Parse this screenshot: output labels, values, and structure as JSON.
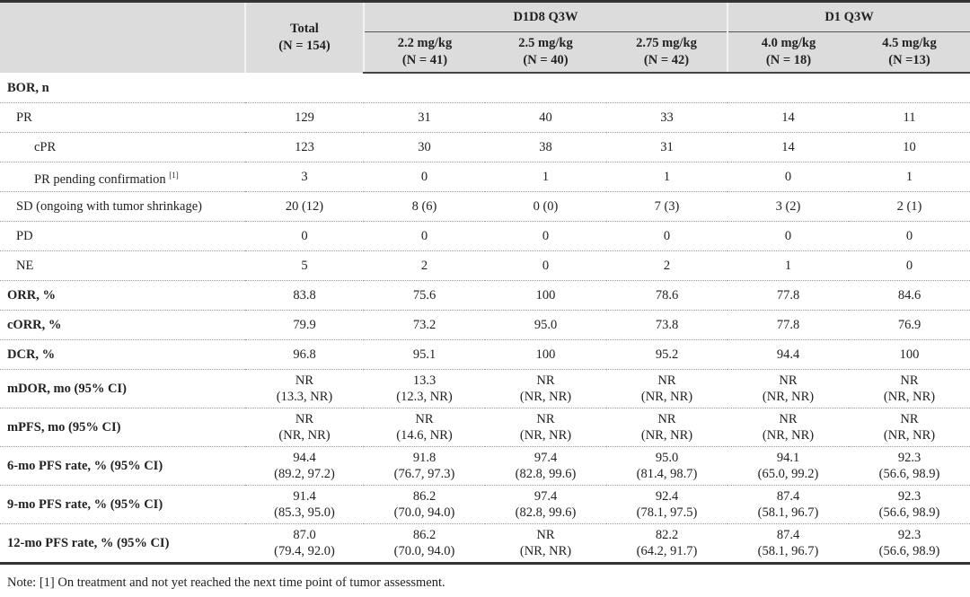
{
  "header": {
    "total_label": "Total",
    "total_n": "(N = 154)",
    "groups": [
      {
        "label": "D1D8 Q3W",
        "cols": [
          {
            "dose": "2.2 mg/kg",
            "n": "(N = 41)"
          },
          {
            "dose": "2.5 mg/kg",
            "n": "(N = 40)"
          },
          {
            "dose": "2.75 mg/kg",
            "n": "(N = 42)"
          }
        ]
      },
      {
        "label": "D1 Q3W",
        "cols": [
          {
            "dose": "4.0 mg/kg",
            "n": "(N = 18)"
          },
          {
            "dose": "4.5 mg/kg",
            "n": "(N =13)"
          }
        ]
      }
    ]
  },
  "rows": [
    {
      "label": "BOR, n",
      "style": "bold",
      "values": []
    },
    {
      "label": "PR",
      "style": "ind1",
      "values": [
        "129",
        "31",
        "40",
        "33",
        "14",
        "11"
      ]
    },
    {
      "label": "cPR",
      "style": "ind2",
      "values": [
        "123",
        "30",
        "38",
        "31",
        "14",
        "10"
      ]
    },
    {
      "label": "PR pending confirmation",
      "sup": "[1]",
      "style": "ind2",
      "values": [
        "3",
        "0",
        "1",
        "1",
        "0",
        "1"
      ]
    },
    {
      "label": "SD (ongoing with tumor shrinkage)",
      "style": "ind1",
      "values": [
        "20 (12)",
        "8 (6)",
        "0 (0)",
        "7 (3)",
        "3 (2)",
        "2 (1)"
      ]
    },
    {
      "label": "PD",
      "style": "ind1",
      "values": [
        "0",
        "0",
        "0",
        "0",
        "0",
        "0"
      ]
    },
    {
      "label": "NE",
      "style": "ind1",
      "values": [
        "5",
        "2",
        "0",
        "2",
        "1",
        "0"
      ]
    },
    {
      "label": "ORR, %",
      "style": "bold",
      "values": [
        "83.8",
        "75.6",
        "100",
        "78.6",
        "77.8",
        "84.6"
      ]
    },
    {
      "label": "cORR, %",
      "style": "bold",
      "values": [
        "79.9",
        "73.2",
        "95.0",
        "73.8",
        "77.8",
        "76.9"
      ]
    },
    {
      "label": "DCR, %",
      "style": "bold",
      "values": [
        "96.8",
        "95.1",
        "100",
        "95.2",
        "94.4",
        "100"
      ]
    },
    {
      "label": "mDOR, mo (95% CI)",
      "style": "bold",
      "values": [
        [
          "NR",
          "(13.3, NR)"
        ],
        [
          "13.3",
          "(12.3, NR)"
        ],
        [
          "NR",
          "(NR, NR)"
        ],
        [
          "NR",
          "(NR, NR)"
        ],
        [
          "NR",
          "(NR, NR)"
        ],
        [
          "NR",
          "(NR, NR)"
        ]
      ]
    },
    {
      "label": "mPFS, mo (95% CI)",
      "style": "bold",
      "values": [
        [
          "NR",
          "(NR, NR)"
        ],
        [
          "NR",
          "(14.6, NR)"
        ],
        [
          "NR",
          "(NR, NR)"
        ],
        [
          "NR",
          "(NR, NR)"
        ],
        [
          "NR",
          "(NR, NR)"
        ],
        [
          "NR",
          "(NR, NR)"
        ]
      ]
    },
    {
      "label": "6-mo PFS rate, % (95% CI)",
      "style": "bold",
      "values": [
        [
          "94.4",
          "(89.2, 97.2)"
        ],
        [
          "91.8",
          "(76.7, 97.3)"
        ],
        [
          "97.4",
          "(82.8, 99.6)"
        ],
        [
          "95.0",
          "(81.4, 98.7)"
        ],
        [
          "94.1",
          "(65.0, 99.2)"
        ],
        [
          "92.3",
          "(56.6, 98.9)"
        ]
      ]
    },
    {
      "label": "9-mo PFS rate, % (95% CI)",
      "style": "bold",
      "values": [
        [
          "91.4",
          "(85.3, 95.0)"
        ],
        [
          "86.2",
          "(70.0, 94.0)"
        ],
        [
          "97.4",
          "(82.8, 99.6)"
        ],
        [
          "92.4",
          "(78.1, 97.5)"
        ],
        [
          "87.4",
          "(58.1, 96.7)"
        ],
        [
          "92.3",
          "(56.6, 98.9)"
        ]
      ]
    },
    {
      "label": "12-mo PFS rate, % (95% CI)",
      "style": "bold",
      "values": [
        [
          "87.0",
          "(79.4, 92.0)"
        ],
        [
          "86.2",
          "(70.0, 94.0)"
        ],
        [
          "NR",
          "(NR, NR)"
        ],
        [
          "82.2",
          "(64.2, 91.7)"
        ],
        [
          "87.4",
          "(58.1, 96.7)"
        ],
        [
          "92.3",
          "(56.6, 98.9)"
        ]
      ]
    }
  ],
  "note": "Note: [1] On treatment and not yet reached the next time point of tumor assessment."
}
